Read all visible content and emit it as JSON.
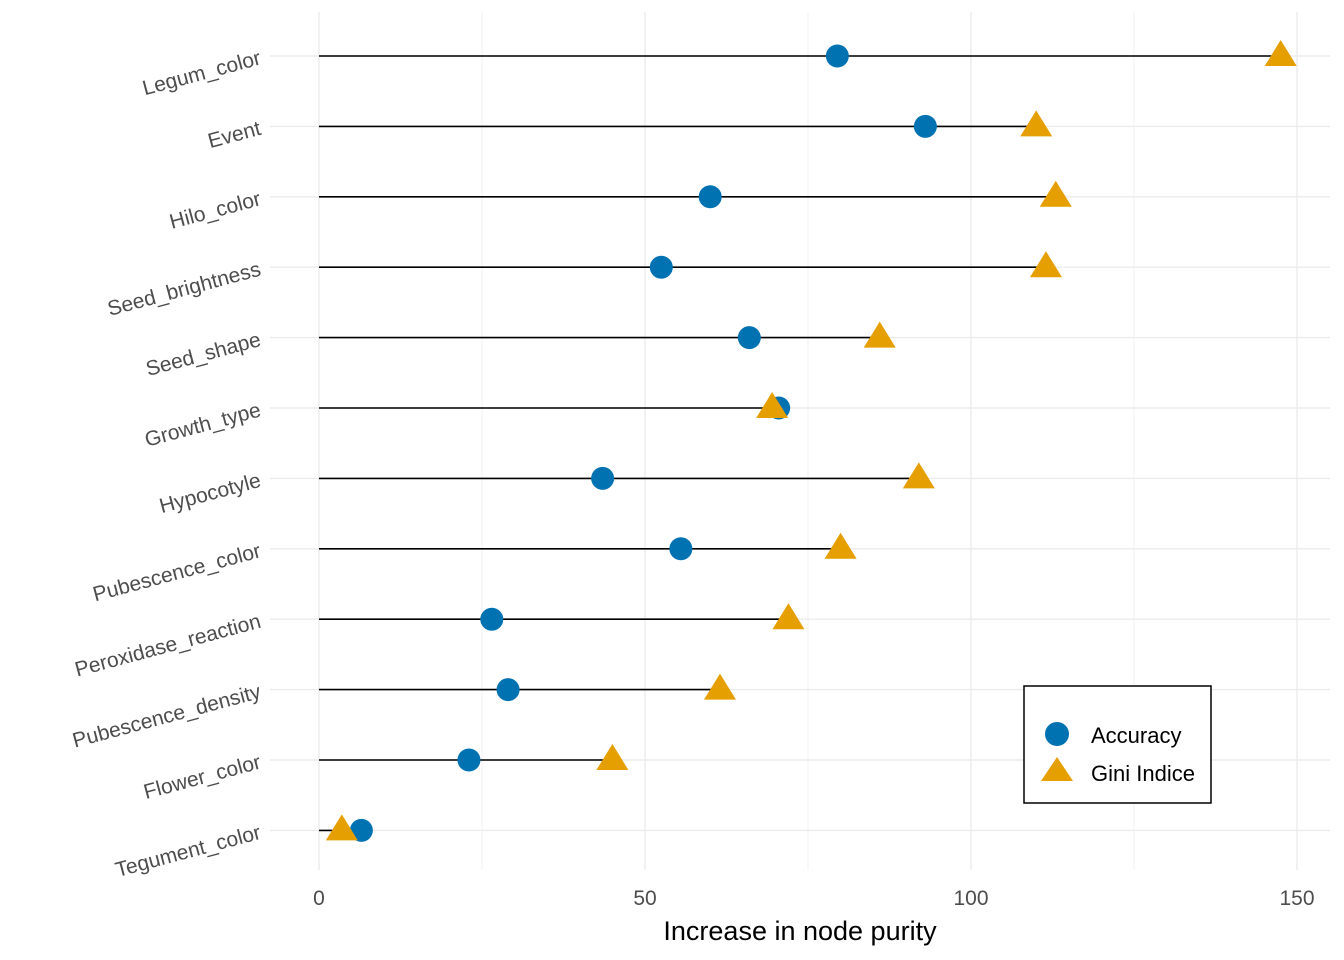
{
  "chart_data": {
    "type": "scatter",
    "subtype": "dumbbell",
    "title": "",
    "xlabel": "Increase in node purity",
    "ylabel": "",
    "xlim": [
      -8,
      155
    ],
    "xticks": [
      0,
      50,
      100,
      150
    ],
    "xtick_labels": [
      "0",
      "50",
      "100",
      "150"
    ],
    "grid": true,
    "legend_position": "bottom-right",
    "categories": [
      "Legum_color",
      "Event",
      "Hilo_color",
      "Seed_brightness",
      "Seed_shape",
      "Growth_type",
      "Hypocotyle",
      "Pubescence_color",
      "Peroxidase_reaction",
      "Pubescence_density",
      "Flower_color",
      "Tegument_color"
    ],
    "series": [
      {
        "name": "Accuracy",
        "marker": "circle",
        "color": "#0072B2",
        "values": [
          79.5,
          93,
          60,
          52.5,
          66,
          70.5,
          43.5,
          55.5,
          26.5,
          29,
          23,
          6.5
        ]
      },
      {
        "name": "Gini Indice",
        "marker": "triangle",
        "color": "#E69F00",
        "values": [
          147.5,
          110,
          113,
          111.5,
          86,
          69.5,
          92,
          80,
          72,
          61.5,
          45,
          3.5
        ]
      }
    ]
  }
}
